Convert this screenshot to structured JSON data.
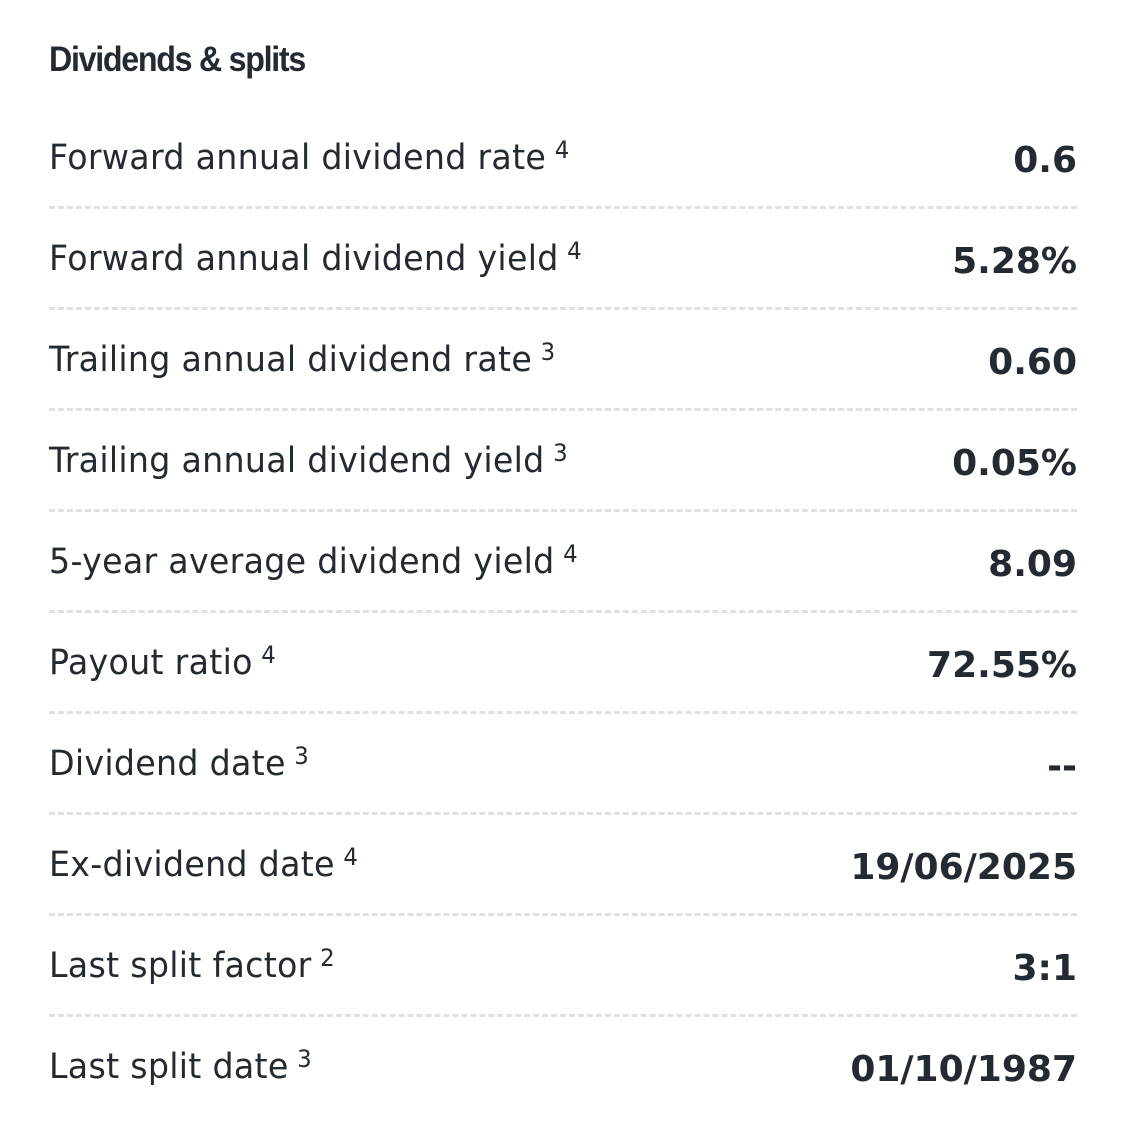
{
  "section": {
    "title": "Dividends & splits"
  },
  "rows": [
    {
      "label": "Forward annual dividend rate",
      "note": "4",
      "value": "0.6"
    },
    {
      "label": "Forward annual dividend yield",
      "note": "4",
      "value": "5.28%"
    },
    {
      "label": "Trailing annual dividend rate",
      "note": "3",
      "value": "0.60"
    },
    {
      "label": "Trailing annual dividend yield",
      "note": "3",
      "value": "0.05%"
    },
    {
      "label": "5-year average dividend yield",
      "note": "4",
      "value": "8.09"
    },
    {
      "label": "Payout ratio",
      "note": "4",
      "value": "72.55%"
    },
    {
      "label": "Dividend date",
      "note": "3",
      "value": "--"
    },
    {
      "label": "Ex-dividend date",
      "note": "4",
      "value": "19/06/2025"
    },
    {
      "label": "Last split factor",
      "note": "2",
      "value": "3:1"
    },
    {
      "label": "Last split date",
      "note": "3",
      "value": "01/10/1987"
    }
  ],
  "colors": {
    "text": "#232a31",
    "divider": "#dfe1e4",
    "background": "#ffffff"
  }
}
